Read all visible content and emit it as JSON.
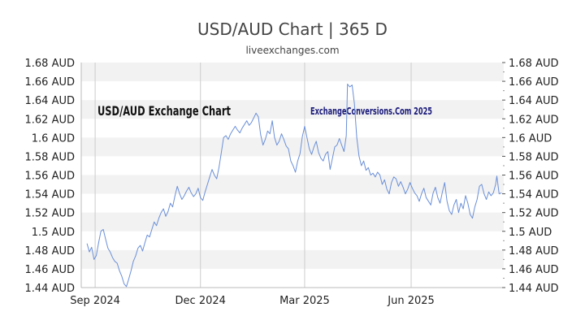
{
  "header": {
    "title": "USD/AUD Chart | 365 D",
    "subtitle": "liveexchanges.com"
  },
  "watermarks": {
    "left": "USD/AUD Exchange Chart",
    "right": "ExchangeConversions.Com 2025"
  },
  "colors": {
    "line": "#6a8fd8",
    "band": "#f2f2f2",
    "grid": "#cccccc",
    "watermark_left": "#111111",
    "watermark_right": "#1a1a7a"
  },
  "chart_data": {
    "type": "line",
    "title": "USD/AUD Chart | 365 D",
    "subtitle": "liveexchanges.com",
    "ylim": [
      1.44,
      1.68
    ],
    "yticks": [
      1.44,
      1.46,
      1.48,
      1.5,
      1.52,
      1.54,
      1.56,
      1.58,
      1.6,
      1.62,
      1.64,
      1.66,
      1.68
    ],
    "ytick_labels": [
      "1.44 AUD",
      "1.46 AUD",
      "1.48 AUD",
      "1.5 AUD",
      "1.52 AUD",
      "1.54 AUD",
      "1.56 AUD",
      "1.58 AUD",
      "1.6 AUD",
      "1.62 AUD",
      "1.64 AUD",
      "1.66 AUD",
      "1.68 AUD"
    ],
    "xlim": [
      "2024-08-20",
      "2025-08-20"
    ],
    "xticks": [
      {
        "date": "2024-09-01",
        "label": "Sep 2024"
      },
      {
        "date": "2024-12-01",
        "label": "Dec 2024"
      },
      {
        "date": "2025-03-01",
        "label": "Mar 2025"
      },
      {
        "date": "2025-06-01",
        "label": "Jun 2025"
      }
    ],
    "grid": true,
    "series": [
      {
        "points": [
          [
            "2024-08-25",
            1.487
          ],
          [
            "2024-08-27",
            1.478
          ],
          [
            "2024-08-29",
            1.483
          ],
          [
            "2024-08-31",
            1.47
          ],
          [
            "2024-09-02",
            1.474
          ],
          [
            "2024-09-04",
            1.488
          ],
          [
            "2024-09-06",
            1.5
          ],
          [
            "2024-09-08",
            1.502
          ],
          [
            "2024-09-10",
            1.492
          ],
          [
            "2024-09-12",
            1.482
          ],
          [
            "2024-09-14",
            1.478
          ],
          [
            "2024-09-16",
            1.472
          ],
          [
            "2024-09-18",
            1.468
          ],
          [
            "2024-09-20",
            1.466
          ],
          [
            "2024-09-22",
            1.458
          ],
          [
            "2024-09-24",
            1.452
          ],
          [
            "2024-09-26",
            1.444
          ],
          [
            "2024-09-28",
            1.441
          ],
          [
            "2024-09-30",
            1.449
          ],
          [
            "2024-10-02",
            1.458
          ],
          [
            "2024-10-04",
            1.468
          ],
          [
            "2024-10-06",
            1.474
          ],
          [
            "2024-10-08",
            1.482
          ],
          [
            "2024-10-10",
            1.485
          ],
          [
            "2024-10-12",
            1.479
          ],
          [
            "2024-10-14",
            1.488
          ],
          [
            "2024-10-16",
            1.496
          ],
          [
            "2024-10-18",
            1.494
          ],
          [
            "2024-10-20",
            1.502
          ],
          [
            "2024-10-22",
            1.51
          ],
          [
            "2024-10-24",
            1.506
          ],
          [
            "2024-10-26",
            1.514
          ],
          [
            "2024-10-28",
            1.52
          ],
          [
            "2024-10-30",
            1.524
          ],
          [
            "2024-11-01",
            1.516
          ],
          [
            "2024-11-03",
            1.521
          ],
          [
            "2024-11-05",
            1.53
          ],
          [
            "2024-11-07",
            1.526
          ],
          [
            "2024-11-09",
            1.538
          ],
          [
            "2024-11-11",
            1.548
          ],
          [
            "2024-11-13",
            1.54
          ],
          [
            "2024-11-15",
            1.534
          ],
          [
            "2024-11-17",
            1.538
          ],
          [
            "2024-11-19",
            1.543
          ],
          [
            "2024-11-21",
            1.547
          ],
          [
            "2024-11-23",
            1.541
          ],
          [
            "2024-11-25",
            1.537
          ],
          [
            "2024-11-27",
            1.54
          ],
          [
            "2024-11-29",
            1.546
          ],
          [
            "2024-12-01",
            1.536
          ],
          [
            "2024-12-03",
            1.533
          ],
          [
            "2024-12-05",
            1.542
          ],
          [
            "2024-12-07",
            1.55
          ],
          [
            "2024-12-09",
            1.558
          ],
          [
            "2024-12-11",
            1.566
          ],
          [
            "2024-12-13",
            1.56
          ],
          [
            "2024-12-15",
            1.556
          ],
          [
            "2024-12-17",
            1.568
          ],
          [
            "2024-12-19",
            1.584
          ],
          [
            "2024-12-21",
            1.6
          ],
          [
            "2024-12-23",
            1.602
          ],
          [
            "2024-12-25",
            1.598
          ],
          [
            "2024-12-27",
            1.604
          ],
          [
            "2024-12-29",
            1.608
          ],
          [
            "2024-12-31",
            1.612
          ],
          [
            "2025-01-02",
            1.608
          ],
          [
            "2025-01-04",
            1.605
          ],
          [
            "2025-01-06",
            1.61
          ],
          [
            "2025-01-08",
            1.614
          ],
          [
            "2025-01-10",
            1.618
          ],
          [
            "2025-01-12",
            1.613
          ],
          [
            "2025-01-14",
            1.616
          ],
          [
            "2025-01-16",
            1.621
          ],
          [
            "2025-01-18",
            1.626
          ],
          [
            "2025-01-20",
            1.622
          ],
          [
            "2025-01-22",
            1.603
          ],
          [
            "2025-01-24",
            1.592
          ],
          [
            "2025-01-26",
            1.598
          ],
          [
            "2025-01-28",
            1.607
          ],
          [
            "2025-01-30",
            1.604
          ],
          [
            "2025-02-01",
            1.618
          ],
          [
            "2025-02-03",
            1.6
          ],
          [
            "2025-02-05",
            1.592
          ],
          [
            "2025-02-07",
            1.596
          ],
          [
            "2025-02-09",
            1.604
          ],
          [
            "2025-02-11",
            1.598
          ],
          [
            "2025-02-13",
            1.591
          ],
          [
            "2025-02-15",
            1.588
          ],
          [
            "2025-02-17",
            1.575
          ],
          [
            "2025-02-19",
            1.57
          ],
          [
            "2025-02-21",
            1.563
          ],
          [
            "2025-02-23",
            1.575
          ],
          [
            "2025-02-25",
            1.583
          ],
          [
            "2025-02-27",
            1.601
          ],
          [
            "2025-03-01",
            1.612
          ],
          [
            "2025-03-03",
            1.6
          ],
          [
            "2025-03-05",
            1.588
          ],
          [
            "2025-03-07",
            1.582
          ],
          [
            "2025-03-09",
            1.59
          ],
          [
            "2025-03-11",
            1.596
          ],
          [
            "2025-03-13",
            1.584
          ],
          [
            "2025-03-15",
            1.578
          ],
          [
            "2025-03-17",
            1.575
          ],
          [
            "2025-03-19",
            1.582
          ],
          [
            "2025-03-21",
            1.585
          ],
          [
            "2025-03-23",
            1.566
          ],
          [
            "2025-03-25",
            1.578
          ],
          [
            "2025-03-27",
            1.59
          ],
          [
            "2025-03-29",
            1.592
          ],
          [
            "2025-03-31",
            1.599
          ],
          [
            "2025-04-02",
            1.592
          ],
          [
            "2025-04-04",
            1.585
          ],
          [
            "2025-04-06",
            1.602
          ],
          [
            "2025-04-07",
            1.657
          ],
          [
            "2025-04-09",
            1.654
          ],
          [
            "2025-04-11",
            1.656
          ],
          [
            "2025-04-13",
            1.636
          ],
          [
            "2025-04-15",
            1.6
          ],
          [
            "2025-04-17",
            1.58
          ],
          [
            "2025-04-19",
            1.57
          ],
          [
            "2025-04-21",
            1.575
          ],
          [
            "2025-04-23",
            1.565
          ],
          [
            "2025-04-25",
            1.568
          ],
          [
            "2025-04-27",
            1.56
          ],
          [
            "2025-04-29",
            1.562
          ],
          [
            "2025-05-01",
            1.558
          ],
          [
            "2025-05-03",
            1.563
          ],
          [
            "2025-05-05",
            1.56
          ],
          [
            "2025-05-07",
            1.55
          ],
          [
            "2025-05-09",
            1.555
          ],
          [
            "2025-05-11",
            1.545
          ],
          [
            "2025-05-13",
            1.54
          ],
          [
            "2025-05-15",
            1.552
          ],
          [
            "2025-05-17",
            1.558
          ],
          [
            "2025-05-19",
            1.556
          ],
          [
            "2025-05-21",
            1.548
          ],
          [
            "2025-05-23",
            1.553
          ],
          [
            "2025-05-25",
            1.547
          ],
          [
            "2025-05-27",
            1.54
          ],
          [
            "2025-05-29",
            1.545
          ],
          [
            "2025-05-31",
            1.552
          ],
          [
            "2025-06-02",
            1.546
          ],
          [
            "2025-06-04",
            1.541
          ],
          [
            "2025-06-06",
            1.538
          ],
          [
            "2025-06-08",
            1.532
          ],
          [
            "2025-06-10",
            1.54
          ],
          [
            "2025-06-12",
            1.546
          ],
          [
            "2025-06-14",
            1.536
          ],
          [
            "2025-06-16",
            1.532
          ],
          [
            "2025-06-18",
            1.528
          ],
          [
            "2025-06-20",
            1.541
          ],
          [
            "2025-06-22",
            1.547
          ],
          [
            "2025-06-24",
            1.536
          ],
          [
            "2025-06-26",
            1.53
          ],
          [
            "2025-06-28",
            1.542
          ],
          [
            "2025-06-30",
            1.552
          ],
          [
            "2025-07-02",
            1.532
          ],
          [
            "2025-07-04",
            1.522
          ],
          [
            "2025-07-06",
            1.518
          ],
          [
            "2025-07-08",
            1.528
          ],
          [
            "2025-07-10",
            1.534
          ],
          [
            "2025-07-12",
            1.52
          ],
          [
            "2025-07-14",
            1.53
          ],
          [
            "2025-07-16",
            1.524
          ],
          [
            "2025-07-18",
            1.538
          ],
          [
            "2025-07-20",
            1.53
          ],
          [
            "2025-07-22",
            1.518
          ],
          [
            "2025-07-24",
            1.514
          ],
          [
            "2025-07-26",
            1.526
          ],
          [
            "2025-07-28",
            1.534
          ],
          [
            "2025-07-30",
            1.548
          ],
          [
            "2025-08-01",
            1.55
          ],
          [
            "2025-08-03",
            1.54
          ],
          [
            "2025-08-05",
            1.534
          ],
          [
            "2025-08-07",
            1.542
          ],
          [
            "2025-08-09",
            1.538
          ],
          [
            "2025-08-11",
            1.541
          ],
          [
            "2025-08-13",
            1.55
          ],
          [
            "2025-08-14",
            1.559
          ],
          [
            "2025-08-16",
            1.54
          ],
          [
            "2025-08-18",
            1.541
          ]
        ]
      }
    ]
  }
}
